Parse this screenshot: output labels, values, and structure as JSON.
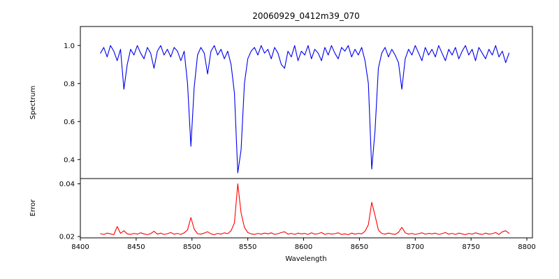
{
  "chart_data": {
    "type": "line",
    "title": "20060929_0412m39_070",
    "xlabel": "Wavelength",
    "x_start": 8418,
    "x_step": 3,
    "xlim": [
      8400,
      8805
    ],
    "grid": false,
    "legend": "none",
    "xticks": {
      "values": [
        8400,
        8450,
        8500,
        8550,
        8600,
        8650,
        8700,
        8750,
        8800
      ],
      "labels": [
        "8400",
        "8450",
        "8500",
        "8550",
        "8600",
        "8650",
        "8700",
        "8750",
        "8800"
      ]
    },
    "panels": [
      {
        "name": "spectrum",
        "ylabel": "Spectrum",
        "color": "#0000ee",
        "ylim": [
          0.3,
          1.1
        ],
        "yticks": {
          "values": [
            0.4,
            0.6,
            0.8,
            1.0
          ],
          "labels": [
            "0.4",
            "0.6",
            "0.8",
            "1.0"
          ]
        },
        "absorption_line_centers": [
          8440,
          8498,
          8542,
          8662,
          8688
        ],
        "values": [
          0.96,
          0.99,
          0.94,
          1.0,
          0.97,
          0.92,
          0.98,
          0.77,
          0.9,
          0.98,
          0.95,
          1.0,
          0.96,
          0.93,
          0.99,
          0.96,
          0.88,
          0.97,
          1.0,
          0.95,
          0.98,
          0.94,
          0.99,
          0.97,
          0.92,
          0.97,
          0.8,
          0.47,
          0.78,
          0.95,
          0.99,
          0.96,
          0.85,
          0.97,
          1.0,
          0.95,
          0.98,
          0.93,
          0.97,
          0.9,
          0.75,
          0.33,
          0.45,
          0.8,
          0.93,
          0.97,
          0.99,
          0.95,
          1.0,
          0.96,
          0.98,
          0.93,
          0.99,
          0.96,
          0.9,
          0.88,
          0.97,
          0.94,
          1.0,
          0.92,
          0.97,
          0.95,
          1.0,
          0.93,
          0.98,
          0.96,
          0.92,
          0.99,
          0.95,
          1.0,
          0.96,
          0.93,
          0.99,
          0.97,
          1.0,
          0.94,
          0.98,
          0.95,
          0.99,
          0.92,
          0.8,
          0.35,
          0.55,
          0.88,
          0.96,
          0.99,
          0.94,
          0.98,
          0.95,
          0.91,
          0.77,
          0.93,
          0.98,
          0.95,
          1.0,
          0.96,
          0.92,
          0.99,
          0.95,
          0.98,
          0.94,
          1.0,
          0.96,
          0.92,
          0.98,
          0.95,
          0.99,
          0.93,
          0.97,
          1.0,
          0.95,
          0.98,
          0.92,
          0.99,
          0.96,
          0.93,
          0.98,
          0.95,
          1.0,
          0.94,
          0.97,
          0.91,
          0.96
        ]
      },
      {
        "name": "error",
        "ylabel": "Error",
        "color": "#ff0000",
        "ylim": [
          0.0195,
          0.042
        ],
        "yticks": {
          "values": [
            0.02,
            0.04
          ],
          "labels": [
            "0.02",
            "0.04"
          ]
        },
        "values": [
          0.0211,
          0.0208,
          0.0213,
          0.021,
          0.0207,
          0.0238,
          0.0212,
          0.0222,
          0.021,
          0.0208,
          0.0212,
          0.0209,
          0.0214,
          0.021,
          0.0207,
          0.0211,
          0.022,
          0.0209,
          0.0213,
          0.0208,
          0.0211,
          0.0215,
          0.0209,
          0.0212,
          0.0208,
          0.0214,
          0.0225,
          0.0272,
          0.0228,
          0.0211,
          0.0209,
          0.0213,
          0.0218,
          0.021,
          0.0207,
          0.0212,
          0.0209,
          0.0214,
          0.0211,
          0.0222,
          0.0252,
          0.04,
          0.029,
          0.0235,
          0.0215,
          0.021,
          0.0208,
          0.0212,
          0.0209,
          0.0213,
          0.021,
          0.0214,
          0.0208,
          0.0211,
          0.0215,
          0.0218,
          0.0209,
          0.0212,
          0.0208,
          0.0213,
          0.021,
          0.0212,
          0.0208,
          0.0214,
          0.0209,
          0.0211,
          0.0215,
          0.0208,
          0.0212,
          0.0209,
          0.0211,
          0.0214,
          0.0208,
          0.021,
          0.0207,
          0.0213,
          0.0209,
          0.0212,
          0.021,
          0.022,
          0.0245,
          0.033,
          0.028,
          0.0225,
          0.0212,
          0.0209,
          0.0213,
          0.021,
          0.0208,
          0.0216,
          0.0235,
          0.0214,
          0.0209,
          0.0212,
          0.0208,
          0.0211,
          0.0214,
          0.0209,
          0.0212,
          0.021,
          0.0213,
          0.0208,
          0.0211,
          0.0215,
          0.0209,
          0.0212,
          0.0208,
          0.0213,
          0.021,
          0.0207,
          0.0212,
          0.0209,
          0.0214,
          0.021,
          0.0208,
          0.0213,
          0.0209,
          0.0211,
          0.0215,
          0.0208,
          0.0218,
          0.0222,
          0.0212
        ]
      }
    ]
  }
}
